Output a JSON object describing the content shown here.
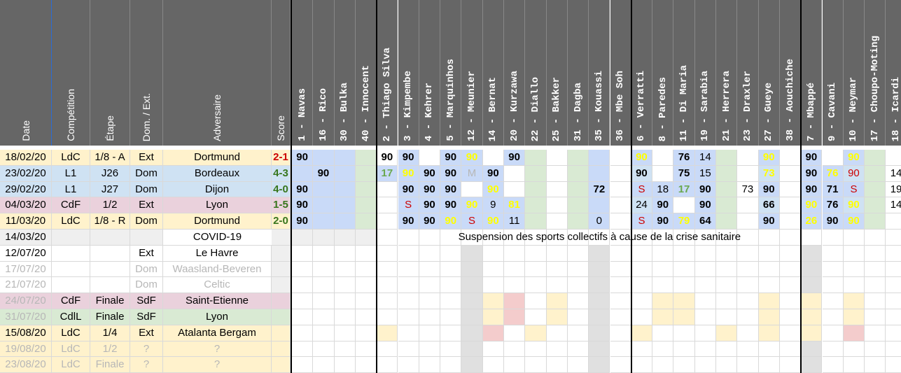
{
  "colors": {
    "header_bg": "#666666",
    "ldc_row": "#fff2cc",
    "l1_row": "#cfe2f3",
    "cdf_row": "#ead1dc",
    "cdll_row": "#d9ead3",
    "white_row": "#ffffff",
    "sub_yellow": "#ffff00",
    "starter_green": "#6aa84f",
    "score_win": "#38761d",
    "score_loss": "#cc0000",
    "muted_text": "#b7b7b7",
    "gk_blue": "#c9daf8",
    "green_cell": "#d9ead3",
    "grey_cell": "#efefef",
    "light_yellow": "#fff2cc",
    "pink_cell": "#f4cccc"
  },
  "info_headers": [
    "Date",
    "Compétition",
    "Étape",
    "Dom. / Ext.",
    "Adversaire",
    "Score"
  ],
  "players": [
    "1 - Navas",
    "16 - Rico",
    "30 - Bulka",
    "40 - Innocent",
    "2 - Thiago Silva",
    "3 - Kimpembe",
    "4 - Kehrer",
    "5 - Marquinhos",
    "12 - Meunier",
    "14 - Bernat",
    "20 - Kurzawa",
    "22 - Diallo",
    "25 - Bakker",
    "31 - Dagba",
    "35 - Kouassi",
    "36 - Mbe Soh",
    "6 - Verratti",
    "8 - Paredes",
    "11 - Di Maria",
    "19 - Sarabia",
    "21 - Herrera",
    "23 - Draxler",
    "27 - Gueye",
    "38 - Aouchiche",
    "7 - Mbappé",
    "9 - Cavani",
    "10 - Neymar",
    "17 - Choupo-Moting",
    "18 - Icardi"
  ],
  "matches": [
    {
      "date": "18/02/20",
      "comp": "LdC",
      "stage": "1/8 - A",
      "venue": "Ext",
      "opponent": "Dortmund",
      "score": "2-1",
      "result": "loss",
      "type": "ldc",
      "muted": false,
      "minutes": [
        "90",
        "",
        "",
        "",
        "90",
        "90",
        "",
        "90",
        "90",
        "",
        "90",
        "",
        "",
        "",
        "",
        "",
        "90",
        "",
        "76",
        "14",
        "",
        "",
        "90",
        "",
        "90",
        "",
        "90",
        "",
        ""
      ],
      "fmt": [
        "b",
        "",
        "",
        "",
        "b",
        "b",
        "",
        "b",
        "y",
        "",
        "b",
        "",
        "",
        "",
        "",
        "",
        "y",
        "",
        "b",
        "",
        "",
        "",
        "y",
        "",
        "b",
        "",
        "y",
        "",
        ""
      ]
    },
    {
      "date": "23/02/20",
      "comp": "L1",
      "stage": "J26",
      "venue": "Dom",
      "opponent": "Bordeaux",
      "score": "4-3",
      "result": "win",
      "type": "l1",
      "muted": false,
      "minutes": [
        "",
        "90",
        "",
        "",
        "17",
        "90",
        "90",
        "90",
        "M",
        "90",
        "",
        "",
        "",
        "",
        "",
        "",
        "90",
        "",
        "75",
        "15",
        "",
        "",
        "73",
        "",
        "90",
        "76",
        "90",
        "",
        "14"
      ],
      "fmt": [
        "",
        "b",
        "",
        "",
        "g",
        "y",
        "b",
        "b",
        "m",
        "b",
        "",
        "",
        "",
        "",
        "",
        "",
        "b",
        "",
        "b",
        "",
        "",
        "",
        "y",
        "",
        "b",
        "y",
        "r",
        "",
        ""
      ]
    },
    {
      "date": "29/02/20",
      "comp": "L1",
      "stage": "J27",
      "venue": "Dom",
      "opponent": "Dijon",
      "score": "4-0",
      "result": "win",
      "type": "l1",
      "muted": false,
      "minutes": [
        "90",
        "",
        "",
        "",
        "",
        "90",
        "90",
        "90",
        "",
        "90",
        "",
        "",
        "",
        "",
        "72",
        "",
        "S",
        "18",
        "17",
        "90",
        "",
        "73",
        "90",
        "",
        "90",
        "71",
        "S",
        "",
        "19"
      ],
      "fmt": [
        "b",
        "",
        "",
        "",
        "",
        "b",
        "b",
        "b",
        "",
        "y",
        "",
        "",
        "",
        "",
        "b",
        "",
        "r",
        "",
        "g",
        "b",
        "",
        "",
        "b",
        "",
        "b",
        "b",
        "r",
        "",
        ""
      ]
    },
    {
      "date": "04/03/20",
      "comp": "CdF",
      "stage": "1/2",
      "venue": "Ext",
      "opponent": "Lyon",
      "score": "1-5",
      "result": "win",
      "type": "cdf",
      "muted": false,
      "minutes": [
        "90",
        "",
        "",
        "",
        "",
        "S",
        "90",
        "90",
        "90",
        "9",
        "81",
        "",
        "",
        "",
        "",
        "",
        "24",
        "90",
        "",
        "90",
        "",
        "",
        "66",
        "",
        "90",
        "76",
        "90",
        "",
        "14"
      ],
      "fmt": [
        "b",
        "",
        "",
        "",
        "",
        "r",
        "b",
        "b",
        "y",
        "",
        "y",
        "",
        "",
        "",
        "",
        "",
        "",
        "b",
        "",
        "b",
        "",
        "",
        "b",
        "",
        "y",
        "b",
        "y",
        "",
        ""
      ]
    },
    {
      "date": "11/03/20",
      "comp": "LdC",
      "stage": "1/8 - R",
      "venue": "Dom",
      "opponent": "Dortmund",
      "score": "2-0",
      "result": "win",
      "type": "ldc",
      "muted": false,
      "minutes": [
        "90",
        "",
        "",
        "",
        "",
        "90",
        "90",
        "90",
        "S",
        "90",
        "11",
        "",
        "",
        "",
        "0",
        "",
        "S",
        "90",
        "79",
        "64",
        "",
        "",
        "90",
        "",
        "26",
        "90",
        "90",
        "",
        ""
      ],
      "fmt": [
        "b",
        "",
        "",
        "",
        "",
        "b",
        "b",
        "y",
        "r",
        "y",
        "",
        "",
        "",
        "",
        "",
        "",
        "r",
        "b",
        "y",
        "b",
        "",
        "",
        "b",
        "",
        "y",
        "b",
        "y",
        "",
        ""
      ]
    },
    {
      "date": "14/03/20",
      "comp": "",
      "stage": "",
      "venue": "",
      "opponent": "COVID-19",
      "score": "",
      "result": "",
      "type": "covid",
      "muted": false,
      "note": "Suspension des sports collectifs à cause de la crise sanitaire"
    },
    {
      "date": "12/07/20",
      "comp": "",
      "stage": "",
      "venue": "Ext",
      "opponent": "Le Havre",
      "score": "",
      "result": "",
      "type": "white",
      "muted": false
    },
    {
      "date": "17/07/20",
      "comp": "",
      "stage": "",
      "venue": "Dom",
      "opponent": "Waasland-Beveren",
      "score": "",
      "result": "",
      "type": "white",
      "muted": true
    },
    {
      "date": "21/07/20",
      "comp": "",
      "stage": "",
      "venue": "Dom",
      "opponent": "Celtic",
      "score": "",
      "result": "",
      "type": "white",
      "muted": true
    },
    {
      "date": "24/07/20",
      "comp": "CdF",
      "stage": "Finale",
      "venue": "SdF",
      "opponent": "Saint-Etienne",
      "score": "",
      "result": "",
      "type": "cdf",
      "muted": false,
      "date_muted": true
    },
    {
      "date": "31/07/20",
      "comp": "CdlL",
      "stage": "Finale",
      "venue": "SdF",
      "opponent": "Lyon",
      "score": "",
      "result": "",
      "type": "cdll",
      "muted": false,
      "date_muted": true
    },
    {
      "date": "15/08/20",
      "comp": "LdC",
      "stage": "1/4",
      "venue": "Ext",
      "opponent": "Atalanta Bergam",
      "score": "",
      "result": "",
      "type": "ldc",
      "muted": false
    },
    {
      "date": "19/08/20",
      "comp": "LdC",
      "stage": "1/2",
      "venue": "?",
      "opponent": "?",
      "score": "",
      "result": "",
      "type": "ldc",
      "muted": true
    },
    {
      "date": "23/08/20",
      "comp": "LdC",
      "stage": "Finale",
      "venue": "?",
      "opponent": "?",
      "score": "",
      "result": "",
      "type": "ldc",
      "muted": true
    }
  ]
}
